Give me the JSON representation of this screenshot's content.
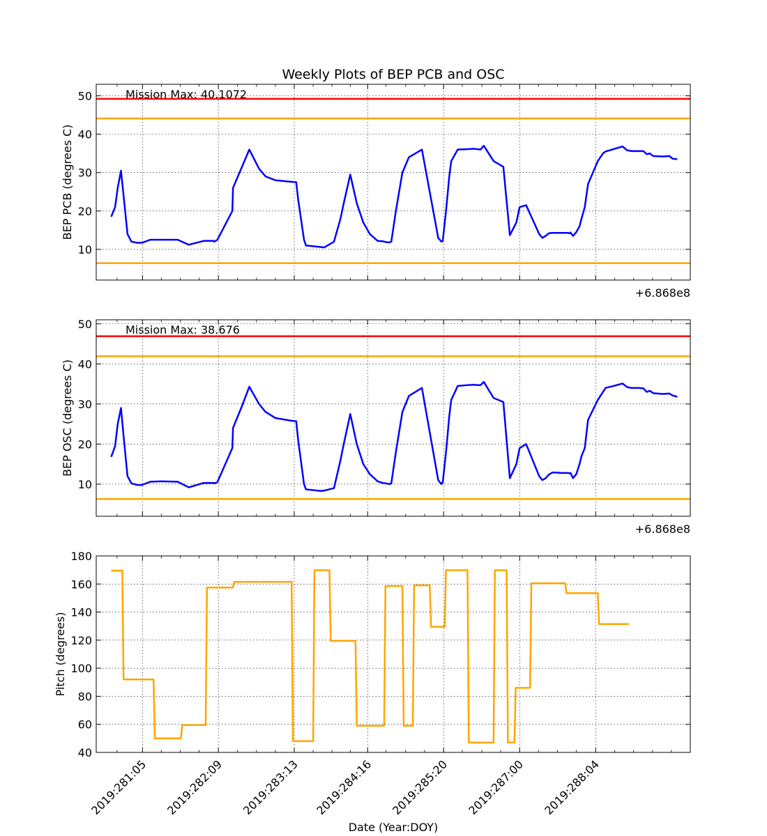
{
  "figure": {
    "title": "Weekly Plots of BEP PCB and OSC",
    "xlabel": "Date (Year:DOY)"
  },
  "chart_data": [
    {
      "type": "line",
      "id": "pcb",
      "ylabel": "BEP PCB (degrees C)",
      "ylim": [
        2,
        53
      ],
      "yticks": [
        10,
        20,
        30,
        40,
        50
      ],
      "grid": true,
      "offset_label": "+6.868e8",
      "annotation": "Mission Max: 40.1072",
      "limits": [
        {
          "value": 49.2,
          "color": "#ff0000"
        },
        {
          "value": 44.1,
          "color": "#ffa500"
        },
        {
          "value": 6.4,
          "color": "#ffa500"
        }
      ],
      "series": [
        {
          "color": "#0000ff",
          "x": [
            "280.73",
            "280.79",
            "280.83",
            "280.88",
            "280.92",
            "280.98",
            "281.04",
            "281.13",
            "281.2",
            "281.33",
            "281.5",
            "281.75",
            "281.92",
            "282.15",
            "282.3",
            "282.31",
            "282.36",
            "282.59",
            "282.6",
            "282.75",
            "282.85",
            "283.0",
            "283.1",
            "283.25",
            "283.5",
            "283.57",
            "283.6",
            "283.69",
            "283.72",
            "283.95",
            "284.0",
            "284.15",
            "284.25",
            "284.3",
            "284.4",
            "284.5",
            "284.6",
            "284.7",
            "284.82",
            "284.9",
            "284.95",
            "285.0",
            "285.03",
            "285.1",
            "285.2",
            "285.3",
            "285.5",
            "285.75",
            "285.8",
            "285.82",
            "285.87",
            "285.92",
            "285.95",
            "286.05",
            "286.2",
            "286.3",
            "286.35",
            "286.4",
            "286.45",
            "286.6",
            "286.75",
            "286.85",
            "286.95",
            "287.0",
            "287.1",
            "287.3",
            "287.35",
            "287.4",
            "287.45",
            "287.5",
            "287.55",
            "287.63",
            "287.73",
            "287.77",
            "287.78",
            "287.82",
            "287.87",
            "287.92",
            "287.95",
            "288.0",
            "288.05",
            "288.2",
            "288.28",
            "288.32",
            "288.42",
            "288.58",
            "288.65",
            "288.72",
            "288.82",
            "288.9",
            "288.95",
            "289.0",
            "289.05",
            "289.2",
            "289.3",
            "289.35",
            "289.42"
          ],
          "y": [
            18.5,
            21,
            26,
            30.5,
            24,
            14,
            12,
            11.7,
            11.7,
            12.5,
            12.5,
            12.5,
            11.2,
            12.2,
            12.2,
            12,
            12.5,
            20,
            26,
            32,
            36,
            31,
            29,
            28,
            27.6,
            27.5,
            23,
            12.5,
            11,
            10.6,
            10.5,
            12,
            18,
            22,
            29.5,
            22,
            17,
            14,
            12.2,
            12.1,
            11.9,
            11.8,
            12,
            20,
            30,
            34,
            36,
            13,
            12,
            12.2,
            20,
            29,
            33,
            36,
            36.1,
            36.2,
            36.1,
            36,
            37,
            33,
            31.5,
            13.7,
            17,
            21,
            21.5,
            14,
            13,
            13.5,
            14.2,
            14.3,
            14.3,
            14.3,
            14.3,
            14.2,
            14.4,
            13.5,
            14.5,
            16,
            18,
            21,
            27,
            33,
            35,
            35.5,
            36,
            36.8,
            35.8,
            35.6,
            35.6,
            35.6,
            34.8,
            35.0,
            34.3,
            34.2,
            34.3,
            33.6,
            33.5
          ]
        }
      ]
    },
    {
      "type": "line",
      "id": "osc",
      "ylabel": "BEP OSC (degrees C)",
      "ylim": [
        2,
        51
      ],
      "yticks": [
        10,
        20,
        30,
        40,
        50
      ],
      "grid": true,
      "offset_label": "+6.868e8",
      "annotation": "Mission Max: 38.676",
      "limits": [
        {
          "value": 46.9,
          "color": "#ff0000"
        },
        {
          "value": 41.9,
          "color": "#ffa500"
        },
        {
          "value": 6.3,
          "color": "#ffa500"
        }
      ],
      "series": [
        {
          "color": "#0000ff",
          "x": [
            "280.73",
            "280.79",
            "280.83",
            "280.88",
            "280.92",
            "280.98",
            "281.04",
            "281.13",
            "281.2",
            "281.33",
            "281.5",
            "281.75",
            "281.92",
            "282.15",
            "282.3",
            "282.31",
            "282.36",
            "282.59",
            "282.6",
            "282.75",
            "282.85",
            "283.0",
            "283.1",
            "283.25",
            "283.5",
            "283.57",
            "283.6",
            "283.69",
            "283.72",
            "283.95",
            "284.0",
            "284.15",
            "284.25",
            "284.3",
            "284.4",
            "284.5",
            "284.6",
            "284.7",
            "284.82",
            "284.9",
            "284.95",
            "285.0",
            "285.03",
            "285.1",
            "285.2",
            "285.3",
            "285.5",
            "285.75",
            "285.8",
            "285.82",
            "285.87",
            "285.92",
            "285.95",
            "286.05",
            "286.2",
            "286.3",
            "286.35",
            "286.4",
            "286.45",
            "286.6",
            "286.75",
            "286.85",
            "286.95",
            "287.0",
            "287.1",
            "287.3",
            "287.35",
            "287.4",
            "287.45",
            "287.5",
            "287.55",
            "287.63",
            "287.73",
            "287.77",
            "287.78",
            "287.82",
            "287.87",
            "287.92",
            "287.95",
            "288.0",
            "288.05",
            "288.2",
            "288.28",
            "288.32",
            "288.42",
            "288.58",
            "288.65",
            "288.72",
            "288.82",
            "288.9",
            "288.95",
            "289.0",
            "289.05",
            "289.2",
            "289.3",
            "289.35",
            "289.42"
          ],
          "y": [
            16.8,
            19.5,
            25,
            29,
            22,
            12,
            10.2,
            9.8,
            9.8,
            10.6,
            10.7,
            10.6,
            9.2,
            10.3,
            10.3,
            10.2,
            10.5,
            19,
            24,
            30,
            34.3,
            30,
            28,
            26.5,
            25.8,
            25.7,
            21,
            10,
            8.7,
            8.3,
            8.4,
            9,
            16,
            20,
            27.5,
            20,
            15,
            12.5,
            10.7,
            10.3,
            10.2,
            10,
            10.2,
            18,
            28,
            32,
            34,
            11,
            10,
            10.5,
            18,
            27,
            31,
            34.5,
            34.7,
            34.8,
            34.7,
            34.7,
            35.5,
            31.5,
            30.5,
            11.5,
            15,
            19,
            20,
            12,
            11,
            11.5,
            12.4,
            12.9,
            12.9,
            12.8,
            12.8,
            12.7,
            12.8,
            11.5,
            12.5,
            15,
            17,
            19,
            26,
            31,
            33,
            34,
            34.4,
            35.1,
            34.2,
            34,
            34,
            33.9,
            33.0,
            33.3,
            32.7,
            32.5,
            32.6,
            32.1,
            31.8
          ]
        }
      ]
    },
    {
      "type": "line",
      "id": "pitch",
      "ylabel": "Pitch (degrees)",
      "ylim": [
        40,
        180
      ],
      "yticks": [
        40,
        60,
        80,
        100,
        120,
        140,
        160,
        180
      ],
      "grid": true,
      "limits": [],
      "xticks": [
        {
          "x": "281.21",
          "label": "2019:281:05"
        },
        {
          "x": "282.375",
          "label": "2019:282:09"
        },
        {
          "x": "283.54",
          "label": "2019:283:13"
        },
        {
          "x": "284.667",
          "label": "2019:284:16"
        },
        {
          "x": "285.833",
          "label": "2019:285:20"
        },
        {
          "x": "287.0",
          "label": "2019:287:00"
        },
        {
          "x": "288.167",
          "label": "2019:288:04"
        }
      ],
      "series": [
        {
          "color": "#ffa500",
          "x": [
            "280.73",
            "280.9",
            "280.92",
            "281.38",
            "281.4",
            "281.8",
            "281.82",
            "282.18",
            "282.2",
            "282.6",
            "282.62",
            "282.93",
            "282.95",
            "283.5",
            "283.52",
            "283.83",
            "283.85",
            "284.08",
            "284.1",
            "284.48",
            "284.5",
            "284.92",
            "284.94",
            "285.2",
            "285.22",
            "285.36",
            "285.38",
            "285.62",
            "285.64",
            "285.85",
            "285.87",
            "286.2",
            "286.22",
            "286.6",
            "286.62",
            "286.8",
            "286.82",
            "286.92",
            "286.94",
            "287.0",
            "287.02",
            "287.05",
            "287.07",
            "287.16",
            "287.18",
            "287.7",
            "287.72",
            "288.2",
            "288.22",
            "288.45",
            "288.47",
            "288.68"
          ],
          "y": [
            169.5,
            169.5,
            92,
            92,
            50,
            50,
            59.5,
            59.5,
            157.5,
            157.5,
            161.5,
            161.5,
            161.5,
            161.5,
            48,
            48,
            169.8,
            169.8,
            119.5,
            119.5,
            59,
            59,
            158.5,
            158.5,
            59,
            59,
            159,
            159,
            129.5,
            129.5,
            169.8,
            169.8,
            47,
            47,
            169.8,
            169.8,
            47,
            47,
            86,
            86,
            86,
            86,
            86,
            86,
            160.5,
            160.5,
            153.5,
            153.5,
            131.5,
            131.5,
            131.5,
            131.5
          ]
        }
      ]
    }
  ]
}
